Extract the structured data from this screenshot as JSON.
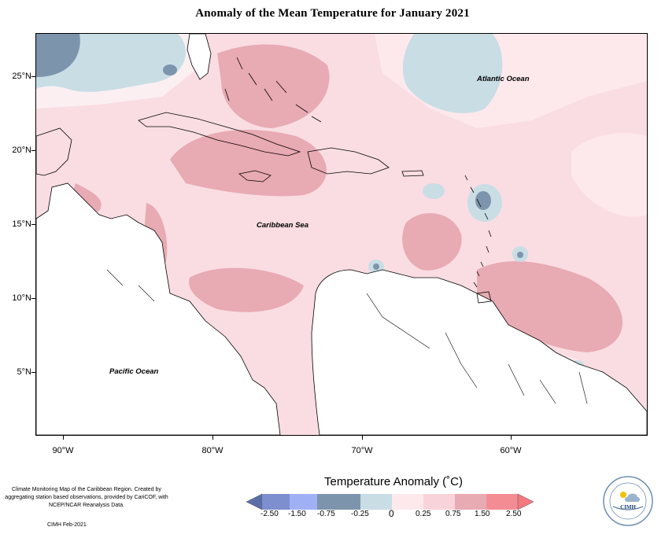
{
  "title": "Anomaly of the Mean Temperature for January 2021",
  "map": {
    "lat_labels": [
      "25°N",
      "20°N",
      "15°N",
      "10°N",
      "5°N"
    ],
    "lon_labels": [
      "90°W",
      "80°W",
      "70°W",
      "60°W"
    ],
    "ocean_labels": {
      "atlantic": "Atlantic Ocean",
      "caribbean": "Caribbean Sea",
      "pacific": "Pacific Ocean"
    }
  },
  "legend": {
    "title": "Temperature Anomaly (˚C)",
    "ticks": [
      "-2.50",
      "-1.50",
      "-0.75",
      "-0.25",
      "0",
      "0.25",
      "0.75",
      "1.50",
      "2.50"
    ],
    "colors": [
      "#5a6ea8",
      "#7d8fcf",
      "#9fb0f5",
      "#7d95ac",
      "#c9dde5",
      "#fde9ec",
      "#f9d3da",
      "#e8aab3",
      "#f48d93",
      "#f4787e"
    ]
  },
  "credit": {
    "text": "Climate Monitoring Map of the Caribbean Region. Created by aggregating station based observations, provided by CariCOF, with NCEP/NCAR Reanalysis Data.",
    "footer": "CIMH Feb-2021"
  },
  "logo": {
    "text": "CIMH",
    "icon": "cimh-logo-icon"
  }
}
